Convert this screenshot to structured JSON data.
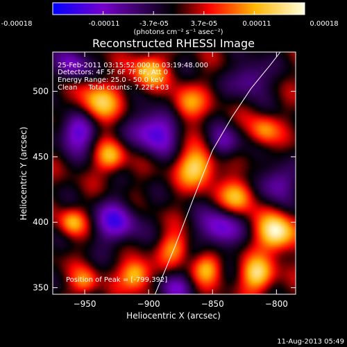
{
  "colorbar": {
    "tick_labels": [
      "-0.00018",
      "-0.00011",
      "-3.7e-05",
      "3.7e-05",
      "0.00011",
      "0.00018"
    ],
    "unit_label": "(photons cm⁻² s⁻¹ asec⁻²)",
    "range": [
      -0.00018,
      0.00018
    ],
    "colors": [
      "#0000ff",
      "#7700cc",
      "#000000",
      "#ff0000",
      "#ffb400",
      "#ffffe0"
    ]
  },
  "info_lines": [
    "25-Feb-2011 03:15:52.000 to 03:19:48.000",
    "Detectors: 4F 5F 6F 7F 8F, Att 0",
    "Energy Range: 25.0 - 50.0 keV",
    "Clean     Total counts: 7.22E+03"
  ],
  "peak_label": "Position of Peak = [-799,392]",
  "footer_date": "11-Aug-2013 05:49",
  "chart_data": {
    "type": "heatmap",
    "title": "Reconstructed RHESSI Image",
    "xlabel": "Heliocentric X (arcsec)",
    "ylabel": "Heliocentric Y (arcsec)",
    "xlim": [
      -975,
      -785
    ],
    "ylim": [
      345,
      530
    ],
    "x_ticks": [
      -950,
      -900,
      -850,
      -800
    ],
    "y_ticks": [
      350,
      400,
      450,
      500
    ],
    "x_tick_labels": [
      "−950",
      "−900",
      "−850",
      "−800"
    ],
    "y_tick_labels": [
      "350",
      "400",
      "450",
      "500"
    ],
    "peak": [
      -799,
      392
    ],
    "limb_curve": {
      "x": [
        -895,
        -880,
        -865,
        -850,
        -835,
        -820,
        -805,
        -797
      ],
      "y": [
        345,
        380,
        418,
        455,
        480,
        502,
        520,
        530
      ]
    },
    "sources": [
      {
        "x": -800,
        "y": 392,
        "amp": 1.0,
        "r": 10
      },
      {
        "x": -862,
        "y": 442,
        "amp": 0.85,
        "r": 10
      },
      {
        "x": -940,
        "y": 490,
        "amp": 0.75,
        "r": 11
      },
      {
        "x": -900,
        "y": 515,
        "amp": 0.7,
        "r": 9
      },
      {
        "x": -930,
        "y": 450,
        "amp": 0.65,
        "r": 8
      },
      {
        "x": -910,
        "y": 360,
        "amp": 0.8,
        "r": 8
      },
      {
        "x": -960,
        "y": 400,
        "amp": 0.6,
        "r": 7
      },
      {
        "x": -830,
        "y": 420,
        "amp": 0.7,
        "r": 9
      },
      {
        "x": -815,
        "y": 360,
        "amp": 0.8,
        "r": 9
      },
      {
        "x": -810,
        "y": 470,
        "amp": 0.55,
        "r": 8
      },
      {
        "x": -870,
        "y": 490,
        "amp": 0.6,
        "r": 9
      },
      {
        "x": -880,
        "y": 380,
        "amp": 0.55,
        "r": 8
      },
      {
        "x": -950,
        "y": 355,
        "amp": 0.5,
        "r": 7
      },
      {
        "x": -855,
        "y": 365,
        "amp": 0.6,
        "r": 8
      },
      {
        "x": -895,
        "y": 470,
        "amp": -0.8,
        "r": 12
      },
      {
        "x": -955,
        "y": 470,
        "amp": -0.75,
        "r": 11
      },
      {
        "x": -845,
        "y": 395,
        "amp": -0.7,
        "r": 11
      },
      {
        "x": -925,
        "y": 400,
        "amp": -0.7,
        "r": 12
      },
      {
        "x": -800,
        "y": 430,
        "amp": -0.6,
        "r": 10
      },
      {
        "x": -820,
        "y": 510,
        "amp": -0.55,
        "r": 10
      },
      {
        "x": -880,
        "y": 350,
        "amp": -0.5,
        "r": 9
      },
      {
        "x": -960,
        "y": 520,
        "amp": -0.6,
        "r": 9
      },
      {
        "x": -840,
        "y": 460,
        "amp": -0.5,
        "r": 9
      }
    ]
  }
}
